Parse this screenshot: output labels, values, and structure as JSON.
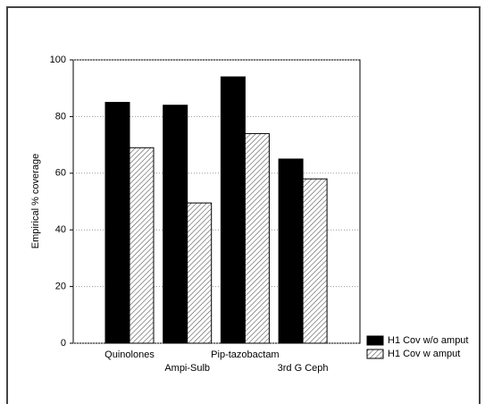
{
  "chart_data": {
    "type": "bar",
    "categories": [
      "Quinolones",
      "Ampi-Sulb",
      "Pip-tazobactam",
      "3rd G Ceph"
    ],
    "series": [
      {
        "name": "H1 Cov w/o amput",
        "color": "#000000",
        "values": [
          85,
          84,
          94,
          65
        ]
      },
      {
        "name": "H1 Cov w amput",
        "color": "hatch",
        "values": [
          69,
          49.5,
          74,
          58
        ]
      }
    ],
    "ylabel": "Empirical % coverage",
    "ylim": [
      0,
      100
    ],
    "yticks": [
      0,
      20,
      40,
      60,
      80,
      100
    ],
    "grid": true,
    "legend": "bottom-right"
  }
}
